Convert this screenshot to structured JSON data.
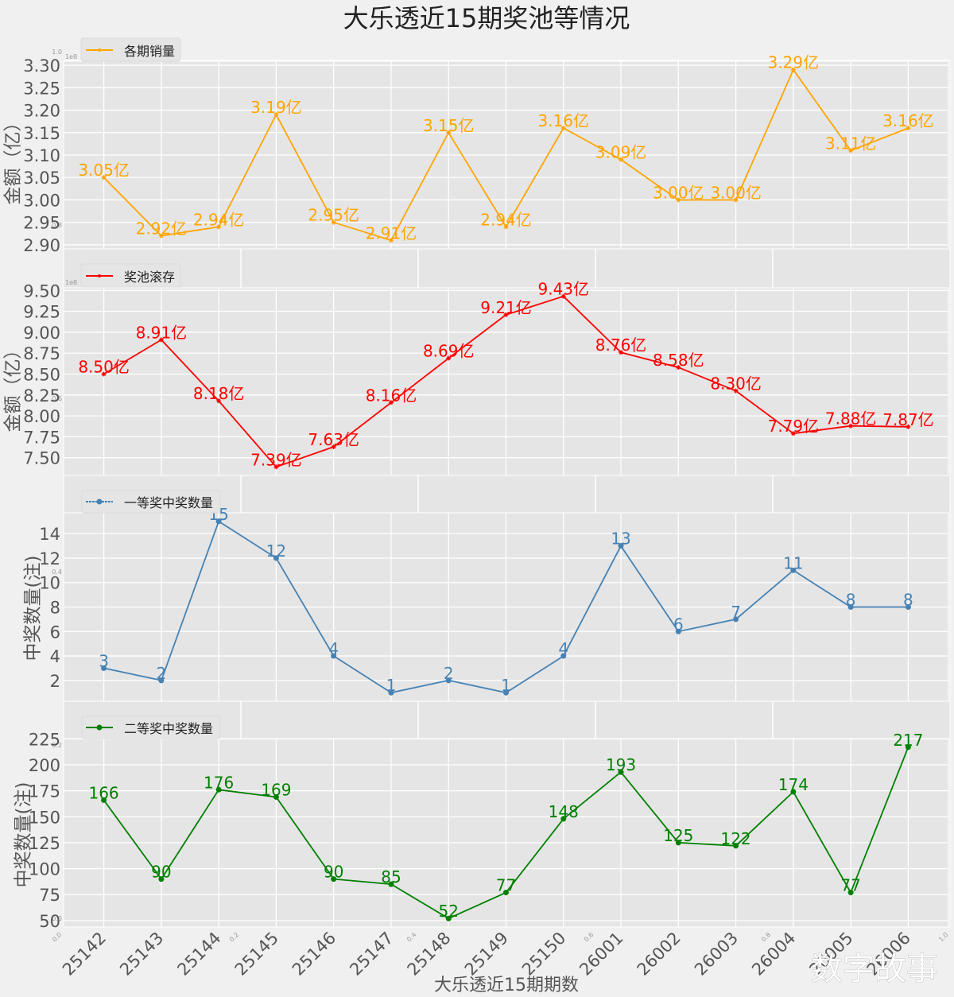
{
  "figure": {
    "title": "大乐透近15期奖池等情况",
    "xlabel": "大乐透近15期期数",
    "watermark": "数字故事",
    "background_color": "#F0F0F0",
    "axes_color": "#E5E5E5"
  },
  "background_axes": {
    "xticks": [
      "0.0",
      "0.2",
      "0.4",
      "0.6",
      "0.8",
      "1.0"
    ],
    "yticks": [
      "0.0",
      "0.2",
      "0.4",
      "0.6",
      "0.8",
      "1.0"
    ]
  },
  "chart_data": [
    {
      "type": "line",
      "legend": "各期销量",
      "legend_position": "top-left",
      "color": "#FFA500",
      "marker": "star",
      "ylabel": "金额（亿）",
      "offset_text": "1e8",
      "grid": true,
      "show_xticklabels": false,
      "categories": [
        "25142",
        "25143",
        "25144",
        "25145",
        "25146",
        "25147",
        "25148",
        "25149",
        "25150",
        "26001",
        "26002",
        "26003",
        "26004",
        "26005",
        "26006"
      ],
      "values": [
        3.05,
        2.92,
        2.94,
        3.19,
        2.95,
        2.91,
        3.15,
        2.94,
        3.16,
        3.09,
        3.0,
        3.0,
        3.29,
        3.11,
        3.16
      ],
      "value_labels": [
        "3.05亿",
        "2.92亿",
        "2.94亿",
        "3.19亿",
        "2.95亿",
        "2.91亿",
        "3.15亿",
        "2.94亿",
        "3.16亿",
        "3.09亿",
        "3.00亿",
        "3.00亿",
        "3.29亿",
        "3.11亿",
        "3.16亿"
      ],
      "yticks": [
        2.9,
        2.95,
        3.0,
        3.05,
        3.1,
        3.15,
        3.2,
        3.25,
        3.3
      ],
      "ytick_labels": [
        "2.90",
        "2.95",
        "3.00",
        "3.05",
        "3.10",
        "3.15",
        "3.20",
        "3.25",
        "3.30"
      ],
      "ylim": [
        2.891,
        3.309
      ]
    },
    {
      "type": "line",
      "legend": "奖池滚存",
      "legend_position": "top-left",
      "color": "#FF0000",
      "marker": "star",
      "ylabel": "金额（亿）",
      "offset_text": "1e8",
      "grid": true,
      "show_xticklabels": false,
      "categories": [
        "25142",
        "25143",
        "25144",
        "25145",
        "25146",
        "25147",
        "25148",
        "25149",
        "25150",
        "26001",
        "26002",
        "26003",
        "26004",
        "26005",
        "26006"
      ],
      "values": [
        8.5,
        8.91,
        8.18,
        7.39,
        7.63,
        8.16,
        8.69,
        9.21,
        9.43,
        8.76,
        8.58,
        8.3,
        7.79,
        7.88,
        7.87
      ],
      "value_labels": [
        "8.50亿",
        "8.91亿",
        "8.18亿",
        "7.39亿",
        "7.63亿",
        "8.16亿",
        "8.69亿",
        "9.21亿",
        "9.43亿",
        "8.76亿",
        "8.58亿",
        "8.30亿",
        "7.79亿",
        "7.88亿",
        "7.87亿"
      ],
      "yticks": [
        7.5,
        7.75,
        8.0,
        8.25,
        8.5,
        8.75,
        9.0,
        9.25,
        9.5
      ],
      "ytick_labels": [
        "7.50",
        "7.75",
        "8.00",
        "8.25",
        "8.50",
        "8.75",
        "9.00",
        "9.25",
        "9.50"
      ],
      "ylim": [
        7.288,
        9.532
      ]
    },
    {
      "type": "line",
      "legend": "一等奖中奖数量",
      "legend_position": "top-left",
      "color": "#4682B4",
      "marker": "circle",
      "ylabel": "中奖数量(注)",
      "grid": true,
      "show_xticklabels": false,
      "categories": [
        "25142",
        "25143",
        "25144",
        "25145",
        "25146",
        "25147",
        "25148",
        "25149",
        "25150",
        "26001",
        "26002",
        "26003",
        "26004",
        "26005",
        "26006"
      ],
      "values": [
        3,
        2,
        15,
        12,
        4,
        1,
        2,
        1,
        4,
        13,
        6,
        7,
        11,
        8,
        8
      ],
      "value_labels": [
        "3",
        "2",
        "15",
        "12",
        "4",
        "1",
        "2",
        "1",
        "4",
        "13",
        "6",
        "7",
        "11",
        "8",
        "8"
      ],
      "yticks": [
        2,
        4,
        6,
        8,
        10,
        12,
        14
      ],
      "ytick_labels": [
        "2",
        "4",
        "6",
        "8",
        "10",
        "12",
        "14"
      ],
      "ylim": [
        0.3,
        15.7
      ]
    },
    {
      "type": "line",
      "legend": "二等奖中奖数量",
      "legend_position": "top-left",
      "color": "#008000",
      "marker": "circle",
      "ylabel": "中奖数量(注)",
      "grid": true,
      "show_xticklabels": true,
      "categories": [
        "25142",
        "25143",
        "25144",
        "25145",
        "25146",
        "25147",
        "25148",
        "25149",
        "25150",
        "26001",
        "26002",
        "26003",
        "26004",
        "26005",
        "26006"
      ],
      "values": [
        166,
        90,
        176,
        169,
        90,
        85,
        52,
        77,
        148,
        193,
        125,
        122,
        174,
        77,
        217
      ],
      "value_labels": [
        "166",
        "90",
        "176",
        "169",
        "90",
        "85",
        "52",
        "77",
        "148",
        "193",
        "125",
        "122",
        "174",
        "77",
        "217"
      ],
      "yticks": [
        50,
        75,
        100,
        125,
        150,
        175,
        200,
        225
      ],
      "ytick_labels": [
        "50",
        "75",
        "100",
        "125",
        "150",
        "175",
        "200",
        "225"
      ],
      "ylim": [
        43.75,
        225.25
      ]
    }
  ]
}
